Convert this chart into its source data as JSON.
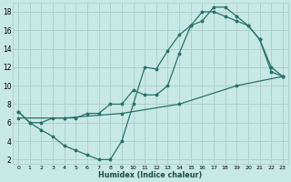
{
  "xlabel": "Humidex (Indice chaleur)",
  "bg_color": "#c8e8e4",
  "grid_color": "#a8ccc8",
  "line_color": "#2a7068",
  "xlim": [
    -0.5,
    23.5
  ],
  "ylim": [
    1.5,
    19.0
  ],
  "xticks": [
    0,
    1,
    2,
    3,
    4,
    5,
    6,
    7,
    8,
    9,
    10,
    11,
    12,
    13,
    14,
    15,
    16,
    17,
    18,
    19,
    20,
    21,
    22,
    23
  ],
  "yticks": [
    2,
    4,
    6,
    8,
    10,
    12,
    14,
    16,
    18
  ],
  "line1_x": [
    0,
    1,
    2,
    3,
    4,
    5,
    6,
    7,
    8,
    9,
    10,
    11,
    12,
    13,
    14,
    15,
    16,
    17,
    18,
    19,
    20,
    21,
    22,
    23
  ],
  "line1_y": [
    7.2,
    6.0,
    5.2,
    4.5,
    3.5,
    3.0,
    2.5,
    2.0,
    2.0,
    4.0,
    8.0,
    12.0,
    11.8,
    13.8,
    15.5,
    16.5,
    18.0,
    18.0,
    17.5,
    17.0,
    16.5,
    15.0,
    12.0,
    11.0
  ],
  "line2_x": [
    0,
    1,
    2,
    3,
    4,
    5,
    6,
    7,
    8,
    9,
    10,
    11,
    12,
    13,
    14,
    15,
    16,
    17,
    18,
    19,
    20,
    21,
    22,
    23
  ],
  "line2_y": [
    7.2,
    6.0,
    6.0,
    6.5,
    6.5,
    6.5,
    7.0,
    7.0,
    8.0,
    8.0,
    9.5,
    9.0,
    9.0,
    10.0,
    13.5,
    16.5,
    17.0,
    18.5,
    18.5,
    17.5,
    16.5,
    15.0,
    11.5,
    11.0
  ],
  "line3_x": [
    0,
    4,
    9,
    14,
    19,
    23
  ],
  "line3_y": [
    6.5,
    6.5,
    7.0,
    8.0,
    10.0,
    11.0
  ]
}
